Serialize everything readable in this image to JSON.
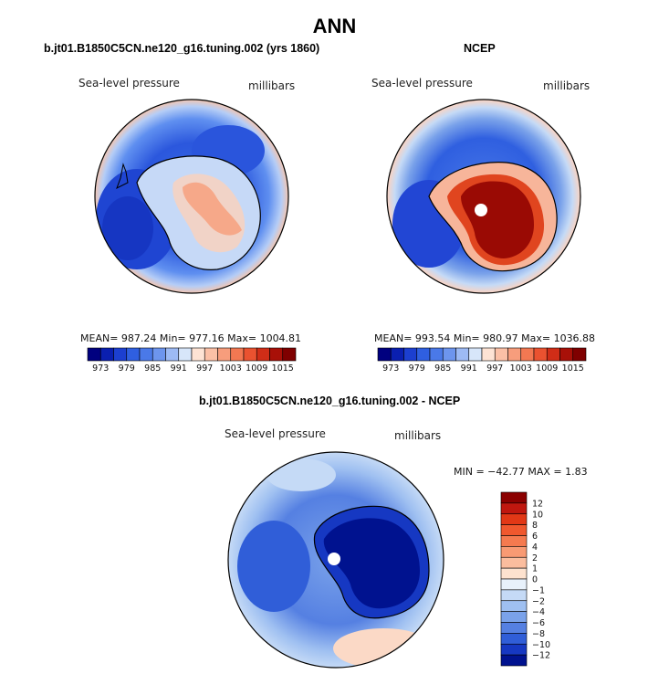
{
  "title": "ANN",
  "panels": [
    {
      "title": "b.jt01.B1850C5CN.ne120_g16.tuning.002 (yrs 1860)",
      "variable": "Sea-level pressure",
      "units": "millibars",
      "stats": "MEAN= 987.24   Min= 977.16   Max= 1004.81"
    },
    {
      "title": "NCEP",
      "variable": "Sea-level pressure",
      "units": "millibars",
      "stats": "MEAN= 993.54   Min= 980.97   Max= 1036.88"
    },
    {
      "title": "b.jt01.B1850C5CN.ne120_g16.tuning.002 - NCEP",
      "variable": "Sea-level pressure",
      "units": "millibars",
      "stats": "MIN = −42.77  MAX =    1.83"
    }
  ],
  "shared_colorbar": {
    "tick_labels": [
      "973",
      "979",
      "985",
      "991",
      "997",
      "1003",
      "1009",
      "1015"
    ],
    "colors": [
      "#00007f",
      "#0a1fb0",
      "#1c3fd0",
      "#2f5fe0",
      "#4a79e8",
      "#6d95ee",
      "#9dbaf4",
      "#d7e6fa",
      "#fde3d4",
      "#fbc0a6",
      "#f79d7c",
      "#f27852",
      "#ea5230",
      "#d02d17",
      "#a81008",
      "#7f0000"
    ]
  },
  "diff_colorbar": {
    "tick_labels": [
      "12",
      "10",
      "8",
      "6",
      "4",
      "2",
      "1",
      "0",
      "−1",
      "−2",
      "−4",
      "−6",
      "−8",
      "−10",
      "−12"
    ],
    "colors": [
      "#8b0000",
      "#c0170f",
      "#e23816",
      "#f0582e",
      "#f57a4f",
      "#f89a73",
      "#fbbd9e",
      "#fde2cf",
      "#e8f1fb",
      "#c5daf6",
      "#9fc0f1",
      "#7aa2ea",
      "#5580e2",
      "#305ed8",
      "#1638c2",
      "#00128f"
    ]
  },
  "map_colors": {
    "coastline": "#000000",
    "pole_marker": "#ffffff"
  }
}
